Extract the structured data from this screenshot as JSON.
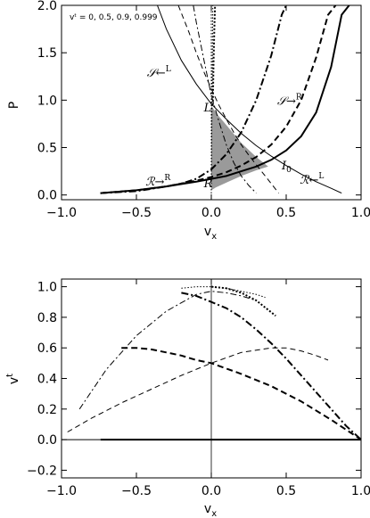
{
  "chart_data": [
    {
      "type": "line",
      "xlabel": "v",
      "xlabel_sub": "x",
      "ylabel": "P",
      "xlim": [
        -1.0,
        1.0
      ],
      "ylim": [
        -0.05,
        2.0
      ],
      "xticks": [
        -1.0,
        -0.5,
        0.0,
        0.5,
        1.0
      ],
      "xtick_labels": [
        "−1.0",
        "−0.5",
        "0.0",
        "0.5",
        "1.0"
      ],
      "yticks": [
        0.0,
        0.5,
        1.0,
        1.5,
        2.0
      ],
      "ytick_labels": [
        "0.0",
        "0.5",
        "1.0",
        "1.5",
        "2.0"
      ],
      "legend_text": "vᵗ = 0, 0.5, 0.9, 0.999",
      "annotations": [
        {
          "text": "𝒮←",
          "sup": "L",
          "x": -0.43,
          "y": 1.25
        },
        {
          "text": "𝒮→",
          "sup": "R",
          "x": 0.44,
          "y": 0.95
        },
        {
          "text": "L",
          "x": -0.05,
          "y": 0.88
        },
        {
          "text": "ℛ→",
          "sup": "R",
          "x": -0.44,
          "y": 0.1
        },
        {
          "text": "R",
          "x": -0.05,
          "y": 0.08
        },
        {
          "text": "I",
          "sub": "0",
          "x": 0.47,
          "y": 0.27
        },
        {
          "text": "ℛ←",
          "sup": "L",
          "x": 0.59,
          "y": 0.12
        }
      ],
      "shaded_region": {
        "points": [
          [
            0.0,
            0.05
          ],
          [
            0.0,
            0.94
          ],
          [
            0.04,
            0.85
          ],
          [
            0.12,
            0.7
          ],
          [
            0.2,
            0.55
          ],
          [
            0.3,
            0.4
          ],
          [
            0.38,
            0.3
          ],
          [
            0.3,
            0.26
          ],
          [
            0.2,
            0.2
          ],
          [
            0.1,
            0.13
          ],
          [
            0.03,
            0.08
          ],
          [
            0.0,
            0.05
          ]
        ]
      },
      "series": [
        {
          "style": "solid-thick",
          "x": [
            -0.74,
            -0.5,
            -0.3,
            -0.1,
            0.0,
            0.1,
            0.2,
            0.3,
            0.4,
            0.5,
            0.6,
            0.7,
            0.8,
            0.87,
            0.92
          ],
          "y": [
            0.02,
            0.05,
            0.09,
            0.14,
            0.17,
            0.2,
            0.25,
            0.3,
            0.37,
            0.47,
            0.62,
            0.87,
            1.35,
            1.9,
            2.0
          ]
        },
        {
          "style": "solid-thin",
          "x": [
            -0.36,
            -0.3,
            -0.2,
            -0.1,
            0.0,
            0.1,
            0.2,
            0.3,
            0.4,
            0.5,
            0.6,
            0.7,
            0.8,
            0.87
          ],
          "y": [
            2.0,
            1.75,
            1.42,
            1.17,
            0.96,
            0.8,
            0.65,
            0.52,
            0.41,
            0.31,
            0.22,
            0.14,
            0.07,
            0.02
          ]
        },
        {
          "style": "dashed-thick",
          "x": [
            -0.74,
            -0.5,
            -0.3,
            -0.1,
            0.0,
            0.1,
            0.2,
            0.3,
            0.4,
            0.5,
            0.6,
            0.7,
            0.78,
            0.83
          ],
          "y": [
            0.02,
            0.05,
            0.09,
            0.15,
            0.19,
            0.24,
            0.31,
            0.4,
            0.53,
            0.72,
            1.0,
            1.45,
            1.9,
            2.0
          ]
        },
        {
          "style": "dashed-thin",
          "x": [
            -0.22,
            -0.15,
            -0.1,
            -0.05,
            0.0,
            0.05,
            0.1,
            0.15,
            0.2,
            0.25,
            0.3,
            0.35,
            0.45
          ],
          "y": [
            2.0,
            1.72,
            1.5,
            1.3,
            1.12,
            0.95,
            0.8,
            0.66,
            0.53,
            0.42,
            0.32,
            0.22,
            0.02
          ]
        },
        {
          "style": "dashdot-thick",
          "x": [
            -0.74,
            -0.5,
            -0.3,
            -0.2,
            -0.1,
            0.0,
            0.1,
            0.2,
            0.3,
            0.4,
            0.47,
            0.5
          ],
          "y": [
            0.02,
            0.04,
            0.09,
            0.12,
            0.17,
            0.27,
            0.43,
            0.66,
            1.0,
            1.47,
            1.9,
            2.0
          ]
        },
        {
          "style": "dashdot-thin",
          "x": [
            -0.12,
            -0.1,
            -0.05,
            0.0,
            0.05,
            0.1,
            0.15,
            0.2,
            0.25,
            0.3
          ],
          "y": [
            2.0,
            1.82,
            1.43,
            1.05,
            0.78,
            0.53,
            0.34,
            0.2,
            0.1,
            0.02
          ]
        },
        {
          "style": "dotted-thick",
          "x": [
            0.01,
            0.015,
            0.02,
            0.025
          ],
          "y": [
            0.95,
            1.4,
            1.75,
            2.0
          ]
        },
        {
          "style": "dotted-thin",
          "x": [
            0.0,
            0.005,
            0.01
          ],
          "y": [
            0.05,
            1.0,
            2.0
          ]
        },
        {
          "style": "dotted-thin",
          "x": [
            0.0,
            0.0
          ],
          "y": [
            -0.05,
            2.0
          ]
        }
      ]
    },
    {
      "type": "line",
      "xlabel": "v",
      "xlabel_sub": "x",
      "ylabel": "v",
      "ylabel_sup": "t",
      "xlim": [
        -1.0,
        1.0
      ],
      "ylim": [
        -0.25,
        1.05
      ],
      "xticks": [
        -1.0,
        -0.5,
        0.0,
        0.5,
        1.0
      ],
      "xtick_labels": [
        "−1.0",
        "−0.5",
        "0.0",
        "0.5",
        "1.0"
      ],
      "yticks": [
        -0.2,
        0.0,
        0.2,
        0.4,
        0.6,
        0.8,
        1.0
      ],
      "ytick_labels": [
        "−0.2",
        "0.0",
        "0.2",
        "0.4",
        "0.6",
        "0.8",
        "1.0"
      ],
      "series": [
        {
          "style": "solid-thick",
          "x": [
            -0.74,
            1.0
          ],
          "y": [
            0.0,
            0.0
          ]
        },
        {
          "style": "solid-thin",
          "x": [
            -1.0,
            -0.74
          ],
          "y": [
            0.0,
            0.0
          ]
        },
        {
          "style": "dashed-thick",
          "x": [
            -0.6,
            -0.5,
            -0.4,
            -0.3,
            -0.2,
            -0.1,
            0.0,
            0.2,
            0.4,
            0.6,
            0.8,
            1.0
          ],
          "y": [
            0.6,
            0.6,
            0.59,
            0.57,
            0.55,
            0.52,
            0.5,
            0.43,
            0.35,
            0.25,
            0.13,
            0.0
          ]
        },
        {
          "style": "dashed-thin",
          "x": [
            -0.96,
            -0.8,
            -0.6,
            -0.4,
            -0.2,
            0.0,
            0.2,
            0.4,
            0.5,
            0.6,
            0.7,
            0.78
          ],
          "y": [
            0.05,
            0.14,
            0.24,
            0.33,
            0.42,
            0.5,
            0.57,
            0.6,
            0.6,
            0.58,
            0.55,
            0.52
          ]
        },
        {
          "style": "dashdot-thick",
          "x": [
            -0.2,
            -0.1,
            0.0,
            0.1,
            0.2,
            0.3,
            0.4,
            0.5,
            0.6,
            0.7,
            0.8,
            0.9,
            1.0
          ],
          "y": [
            0.96,
            0.94,
            0.9,
            0.86,
            0.8,
            0.72,
            0.63,
            0.53,
            0.42,
            0.31,
            0.2,
            0.09,
            0.0
          ]
        },
        {
          "style": "dashdot-thin",
          "x": [
            -0.88,
            -0.7,
            -0.5,
            -0.3,
            -0.1,
            0.0,
            0.1,
            0.2,
            0.3
          ],
          "y": [
            0.2,
            0.46,
            0.68,
            0.84,
            0.95,
            0.97,
            0.96,
            0.94,
            0.91
          ]
        },
        {
          "style": "dotted-thick",
          "x": [
            0.0,
            0.1,
            0.2,
            0.3,
            0.43
          ],
          "y": [
            1.0,
            0.99,
            0.96,
            0.91,
            0.81
          ]
        },
        {
          "style": "dotted-thin",
          "x": [
            -0.2,
            -0.1,
            0.0,
            0.1,
            0.2,
            0.3,
            0.36
          ],
          "y": [
            0.99,
            1.0,
            1.0,
            0.99,
            0.97,
            0.95,
            0.93
          ]
        },
        {
          "style": "solid-vertical",
          "x": [
            0.0,
            0.0
          ],
          "y": [
            -0.25,
            1.05
          ]
        }
      ]
    }
  ]
}
